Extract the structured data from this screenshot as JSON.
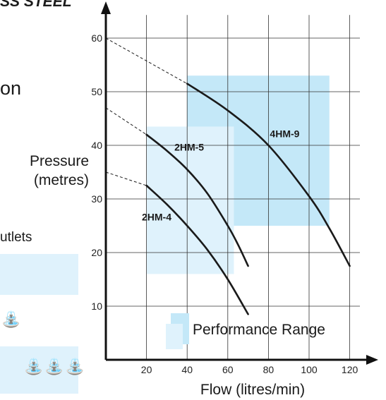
{
  "fragments": {
    "title": "SS STEEL",
    "heading_tail": "on",
    "outlets_label": "utlets"
  },
  "icons": {
    "tap": "tap-icon"
  },
  "colors": {
    "range_dark": "#c4e8f8",
    "range_light": "#dff2fc",
    "curve": "#1a1a1a",
    "grid": "#333333"
  },
  "chart_data": {
    "type": "line",
    "title": "",
    "xlabel": "Flow (litres/min)",
    "ylabel": [
      "Pressure",
      "(metres)"
    ],
    "xlim": [
      0,
      125
    ],
    "ylim": [
      0,
      63
    ],
    "xticks": [
      20,
      40,
      60,
      80,
      100,
      120
    ],
    "yticks": [
      10,
      20,
      30,
      40,
      50,
      60
    ],
    "grid": true,
    "legend": {
      "label": "Performance Range",
      "placement": "bottom-right"
    },
    "performance_ranges": [
      {
        "series": "4HM-9",
        "x_range": [
          40,
          110
        ],
        "y_range": [
          25,
          53
        ]
      },
      {
        "series": "2HM-5",
        "x_range": [
          20,
          63
        ],
        "y_range": [
          16,
          43.5
        ]
      }
    ],
    "series": [
      {
        "name": "2HM-4",
        "extrapolated": [
          [
            0,
            35
          ],
          [
            20,
            32.5
          ]
        ],
        "points": [
          [
            20,
            32.5
          ],
          [
            30,
            29
          ],
          [
            40,
            25
          ],
          [
            50,
            20.5
          ],
          [
            60,
            15
          ],
          [
            70,
            8.5
          ]
        ]
      },
      {
        "name": "2HM-5",
        "extrapolated": [
          [
            0,
            47
          ],
          [
            20,
            42
          ]
        ],
        "points": [
          [
            20,
            42
          ],
          [
            30,
            39
          ],
          [
            40,
            35.5
          ],
          [
            50,
            31
          ],
          [
            60,
            25
          ],
          [
            65,
            21.5
          ],
          [
            70,
            17.5
          ]
        ]
      },
      {
        "name": "4HM-9",
        "extrapolated": [
          [
            0,
            60
          ],
          [
            40,
            51.5
          ]
        ],
        "points": [
          [
            40,
            51.5
          ],
          [
            60,
            46.5
          ],
          [
            80,
            40
          ],
          [
            100,
            30.5
          ],
          [
            110,
            24.5
          ],
          [
            120,
            17.5
          ]
        ]
      }
    ]
  }
}
